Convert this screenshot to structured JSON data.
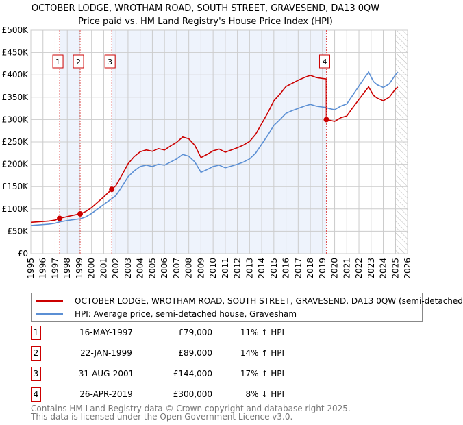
{
  "chart_data": {
    "type": "line",
    "title": "OCTOBER LODGE, WROTHAM ROAD, SOUTH STREET, GRAVESEND, DA13 0QW",
    "subtitle": "Price paid vs. HM Land Registry's House Price Index (HPI)",
    "xlim": [
      1995,
      2026
    ],
    "ylim": [
      0,
      500000
    ],
    "x_ticks": [
      "1995",
      "1996",
      "1997",
      "1998",
      "1999",
      "2000",
      "2001",
      "2002",
      "2003",
      "2004",
      "2005",
      "2006",
      "2007",
      "2008",
      "2009",
      "2010",
      "2011",
      "2012",
      "2013",
      "2014",
      "2015",
      "2016",
      "2017",
      "2018",
      "2019",
      "2020",
      "2021",
      "2022",
      "2023",
      "2024",
      "2025",
      "2026"
    ],
    "y_ticks": [
      {
        "v": 0,
        "label": "£0"
      },
      {
        "v": 50000,
        "label": "£50K"
      },
      {
        "v": 100000,
        "label": "£100K"
      },
      {
        "v": 150000,
        "label": "£150K"
      },
      {
        "v": 200000,
        "label": "£200K"
      },
      {
        "v": 250000,
        "label": "£250K"
      },
      {
        "v": 300000,
        "label": "£300K"
      },
      {
        "v": 350000,
        "label": "£350K"
      },
      {
        "v": 400000,
        "label": "£400K"
      },
      {
        "v": 450000,
        "label": "£450K"
      },
      {
        "v": 500000,
        "label": "£500K"
      }
    ],
    "grid": true,
    "shaded_periods": [
      [
        1997.37,
        1999.06
      ],
      [
        2001.66,
        2019.32
      ]
    ],
    "forecast_hatch_from": 2025.0,
    "series": [
      {
        "name": "OCTOBER LODGE, WROTHAM ROAD, SOUTH STREET, GRAVESEND, DA13 0QW (semi-detached",
        "color": "#cc0000",
        "x": [
          1995,
          1995.5,
          1996,
          1996.5,
          1997,
          1997.37,
          1998,
          1998.5,
          1999.06,
          1999.5,
          2000,
          2000.5,
          2001,
          2001.66,
          2002,
          2002.5,
          2003,
          2003.5,
          2004,
          2004.5,
          2005,
          2005.5,
          2006,
          2006.5,
          2007,
          2007.5,
          2008,
          2008.5,
          2009,
          2009.5,
          2010,
          2010.5,
          2011,
          2011.5,
          2012,
          2012.5,
          2013,
          2013.5,
          2014,
          2014.5,
          2015,
          2015.5,
          2016,
          2016.5,
          2017,
          2017.5,
          2018,
          2018.5,
          2019,
          2019.31,
          2019.32,
          2019.5,
          2020,
          2020.5,
          2021,
          2021.5,
          2022,
          2022.5,
          2022.8,
          2023.2,
          2023.5,
          2024,
          2024.5,
          2025,
          2025.2
        ],
        "y": [
          70,
          71,
          72,
          73,
          75,
          79,
          83,
          86,
          89,
          94,
          103,
          115,
          127,
          144,
          152,
          176,
          201,
          217,
          228,
          232,
          229,
          235,
          232,
          241,
          249,
          261,
          257,
          242,
          215,
          222,
          230,
          234,
          227,
          232,
          237,
          243,
          251,
          267,
          291,
          315,
          342,
          357,
          374,
          381,
          388,
          394,
          399,
          394,
          392,
          391,
          300,
          299,
          296,
          304,
          308,
          327,
          345,
          363,
          373,
          354,
          348,
          342,
          350,
          368,
          373
        ]
      },
      {
        "name": "HPI: Average price, semi-detached house, Gravesham",
        "color": "#5b8fd4",
        "x": [
          1995,
          1995.5,
          1996,
          1996.5,
          1997,
          1997.37,
          1998,
          1998.5,
          1999.06,
          1999.5,
          2000,
          2000.5,
          2001,
          2001.66,
          2002,
          2002.5,
          2003,
          2003.5,
          2004,
          2004.5,
          2005,
          2005.5,
          2006,
          2006.5,
          2007,
          2007.5,
          2008,
          2008.5,
          2009,
          2009.5,
          2010,
          2010.5,
          2011,
          2011.5,
          2012,
          2012.5,
          2013,
          2013.5,
          2014,
          2014.5,
          2015,
          2015.5,
          2016,
          2016.5,
          2017,
          2017.5,
          2018,
          2018.5,
          2019,
          2019.32,
          2019.5,
          2020,
          2020.5,
          2021,
          2021.5,
          2022,
          2022.5,
          2022.8,
          2023.2,
          2023.5,
          2024,
          2024.5,
          2025,
          2025.2
        ],
        "y": [
          63,
          64,
          65,
          66,
          68,
          71,
          74,
          76,
          78,
          82,
          90,
          100,
          110,
          123,
          130,
          150,
          172,
          185,
          195,
          198,
          195,
          200,
          198,
          205,
          212,
          222,
          218,
          205,
          182,
          188,
          195,
          198,
          192,
          196,
          200,
          205,
          212,
          225,
          245,
          265,
          287,
          300,
          314,
          320,
          325,
          330,
          334,
          330,
          328,
          327,
          325,
          322,
          330,
          335,
          355,
          375,
          395,
          406,
          385,
          378,
          372,
          380,
          400,
          406
        ]
      }
    ],
    "y_units": "thousands GBP",
    "sales": [
      {
        "n": "1",
        "x": 1997.37,
        "price": 79,
        "date": "16-MAY-1997",
        "price_label": "£79,000",
        "diff": "11% ↑ HPI"
      },
      {
        "n": "2",
        "x": 1999.06,
        "price": 89,
        "date": "22-JAN-1999",
        "price_label": "£89,000",
        "diff": "14% ↑ HPI"
      },
      {
        "n": "3",
        "x": 2001.66,
        "price": 144,
        "date": "31-AUG-2001",
        "price_label": "£144,000",
        "diff": "17% ↑ HPI"
      },
      {
        "n": "4",
        "x": 2019.32,
        "price": 300,
        "date": "26-APR-2019",
        "price_label": "£300,000",
        "diff": "8% ↓ HPI"
      }
    ]
  },
  "footer": {
    "line1": "Contains HM Land Registry data © Crown copyright and database right 2025.",
    "line2": "This data is licensed under the Open Government Licence v3.0."
  }
}
